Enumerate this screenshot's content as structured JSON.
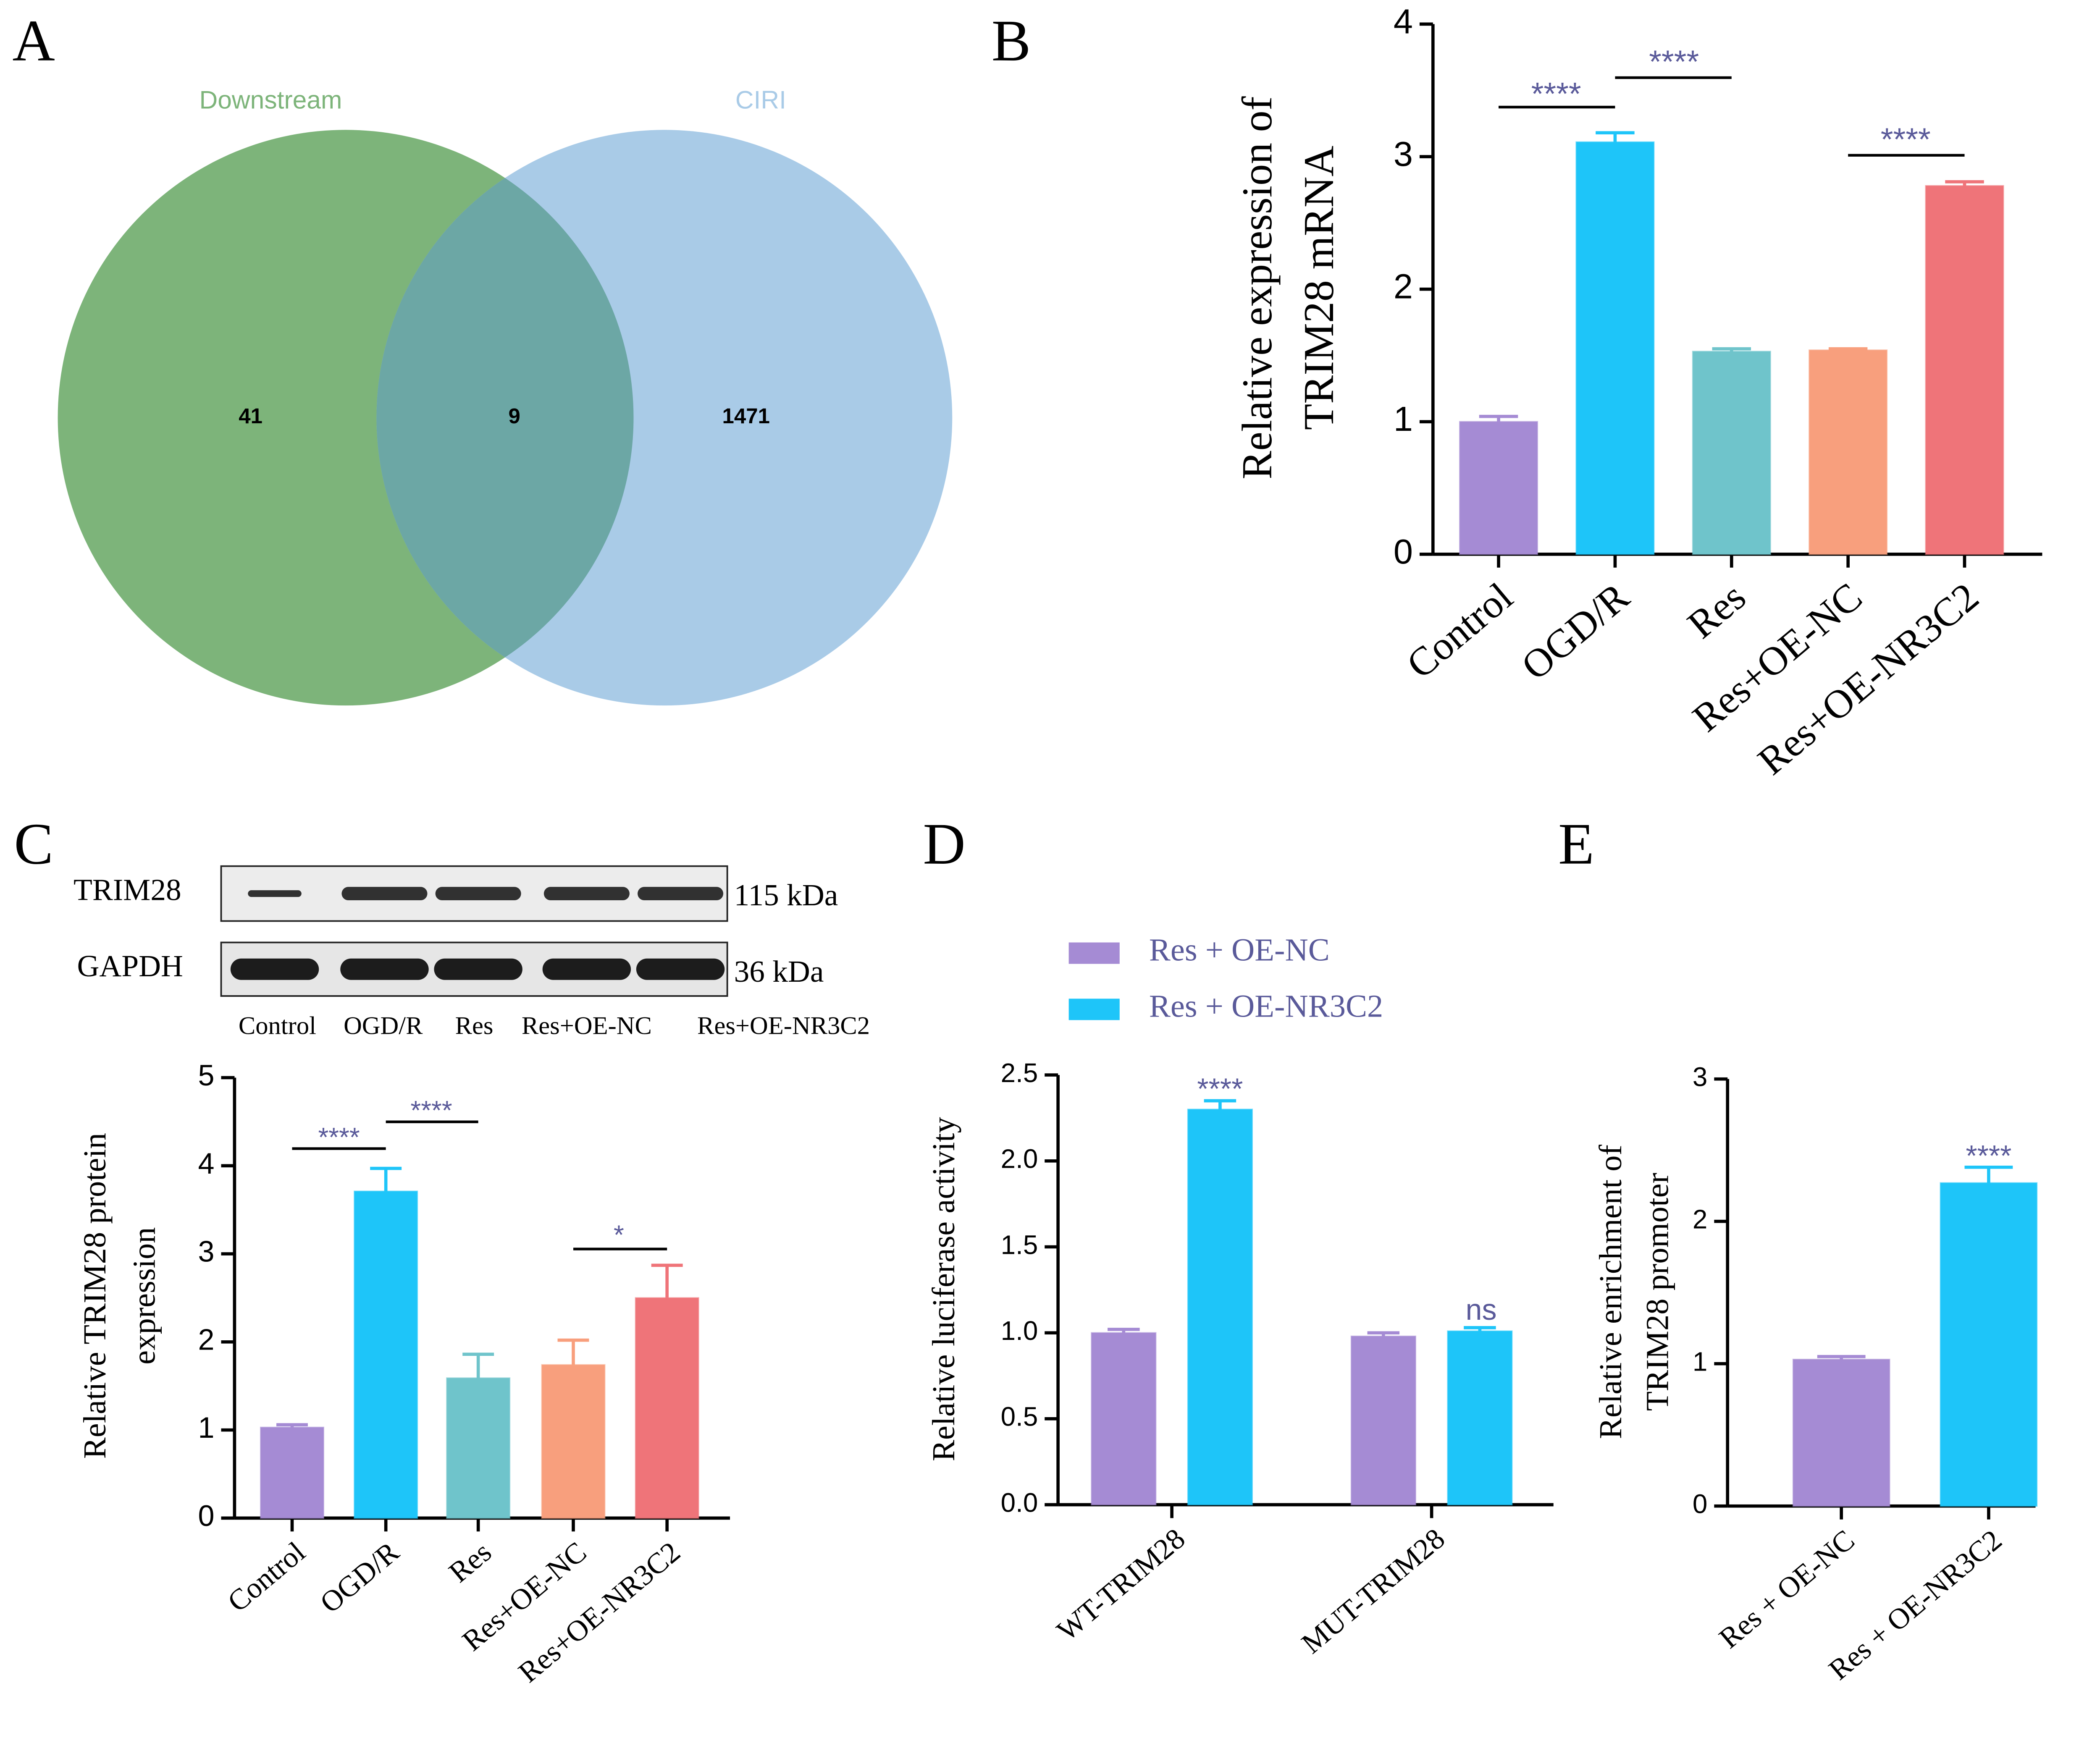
{
  "chart_data": [
    {
      "type": "venn",
      "panel": "A",
      "sets": [
        {
          "name": "Downstream",
          "color": "#7db47a"
        },
        {
          "name": "CIRI",
          "color": "#a9cbe8"
        }
      ],
      "overlap_color": "#6ca6a5",
      "values": [
        41,
        9,
        1471
      ]
    },
    {
      "type": "bar",
      "panel": "B",
      "y_label": [
        "Relative expression of",
        "TRIM28 mRNA"
      ],
      "categories": [
        "Control",
        "OGD/R",
        "Res",
        "Res+OE-NC",
        "Res+OE-NR3C2"
      ],
      "values": [
        1.0,
        3.11,
        1.53,
        1.54,
        2.78
      ],
      "errors": [
        0.04,
        0.07,
        0.02,
        0.01,
        0.03
      ],
      "colors": [
        "#a58bd3",
        "#1ec5f8",
        "#6fc4cc",
        "#f8a07e",
        "#ef7479"
      ],
      "ylim": [
        0,
        4
      ],
      "yticks": [
        0,
        1,
        2,
        3,
        4
      ],
      "annotations": [
        "****",
        "****",
        "****"
      ]
    },
    {
      "type": "bar",
      "panel": "C",
      "blot": {
        "rows": [
          {
            "label": "TRIM28",
            "size": "115 kDa"
          },
          {
            "label": "GAPDH",
            "size": "36 kDa"
          }
        ],
        "lanes": [
          "Control",
          "OGD/R",
          "Res",
          "Res+OE-NC",
          "Res+OE-NR3C2"
        ]
      },
      "y_label": [
        "Relative TRIM28 protein",
        "expression"
      ],
      "categories": [
        "Control",
        "OGD/R",
        "Res",
        "Res+OE-NC",
        "Res+OE-NR3C2"
      ],
      "values": [
        1.03,
        3.71,
        1.59,
        1.74,
        2.5
      ],
      "errors": [
        0.03,
        0.26,
        0.27,
        0.28,
        0.37
      ],
      "colors": [
        "#a58bd3",
        "#1ec5f8",
        "#6fc4cc",
        "#f8a07e",
        "#ef7479"
      ],
      "ylim": [
        0,
        5
      ],
      "yticks": [
        0,
        1,
        2,
        3,
        4,
        5
      ],
      "annotations": [
        "****",
        "****",
        "*"
      ]
    },
    {
      "type": "grouped_bar",
      "panel": "D",
      "y_label": [
        "Relative luciferase activity"
      ],
      "categories": [
        "WT-TRIM28",
        "MUT-TRIM28"
      ],
      "series": [
        {
          "name": "Res + OE-NC",
          "color": "#a58bd3",
          "values": [
            1.0,
            0.98
          ],
          "errors": [
            0.02,
            0.02
          ]
        },
        {
          "name": "Res + OE-NR3C2",
          "color": "#1ec5f8",
          "values": [
            2.3,
            1.01
          ],
          "errors": [
            0.05,
            0.02
          ]
        }
      ],
      "ylim": [
        0,
        2.5
      ],
      "yticks": [
        {
          "value": 0,
          "label": "0.0"
        },
        {
          "value": 0.5,
          "label": "0.5"
        },
        {
          "value": 1,
          "label": "1.0"
        },
        {
          "value": 1.5,
          "label": "1.5"
        },
        {
          "value": 2,
          "label": "2.0"
        },
        {
          "value": 2.5,
          "label": "2.5"
        }
      ],
      "annotations": [
        "****",
        "ns"
      ]
    },
    {
      "type": "bar",
      "panel": "E",
      "y_label": [
        "Relative enrichment of",
        "TRIM28 promoter"
      ],
      "categories": [
        "Res + OE-NC",
        "Res + OE-NR3C2"
      ],
      "values": [
        1.03,
        2.27
      ],
      "errors": [
        0.02,
        0.11
      ],
      "colors": [
        "#a58bd3",
        "#1ec5f8"
      ],
      "ylim": [
        0,
        3
      ],
      "yticks": [
        0,
        1,
        2,
        3
      ],
      "annotations": [
        "****"
      ]
    }
  ]
}
